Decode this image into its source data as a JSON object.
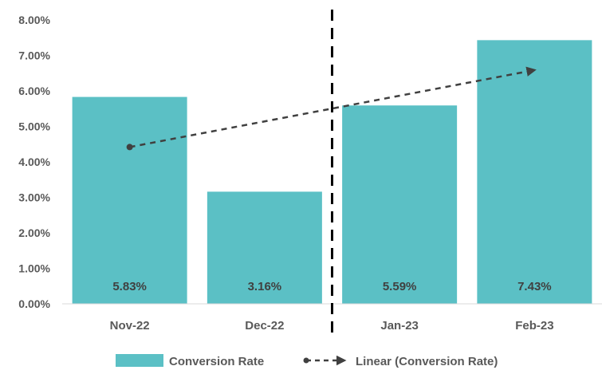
{
  "chart_data": {
    "type": "bar",
    "categories": [
      "Nov-22",
      "Dec-22",
      "Jan-23",
      "Feb-23"
    ],
    "series": [
      {
        "name": "Conversion Rate",
        "values": [
          5.83,
          3.16,
          5.59,
          7.43
        ],
        "color": "#5bc0c5"
      }
    ],
    "data_labels": [
      "5.83%",
      "3.16%",
      "5.59%",
      "7.43%"
    ],
    "trendline": {
      "name": "Linear (Conversion Rate)",
      "type": "linear",
      "style": "dashed-arrow",
      "color": "#404040"
    },
    "y_ticks": [
      "0.00%",
      "1.00%",
      "2.00%",
      "3.00%",
      "4.00%",
      "5.00%",
      "6.00%",
      "7.00%",
      "8.00%"
    ],
    "ylim": [
      0,
      8
    ],
    "y_unit": "%",
    "divider": {
      "style": "dashed-vertical",
      "between": [
        "Dec-22",
        "Jan-23"
      ],
      "color": "#000000"
    },
    "legend": {
      "position": "bottom",
      "items": [
        {
          "label": "Conversion Rate",
          "kind": "bar-swatch"
        },
        {
          "label": "Linear (Conversion Rate)",
          "kind": "dashed-arrow"
        }
      ]
    },
    "grid": false,
    "title": "",
    "xlabel": "",
    "ylabel": ""
  }
}
